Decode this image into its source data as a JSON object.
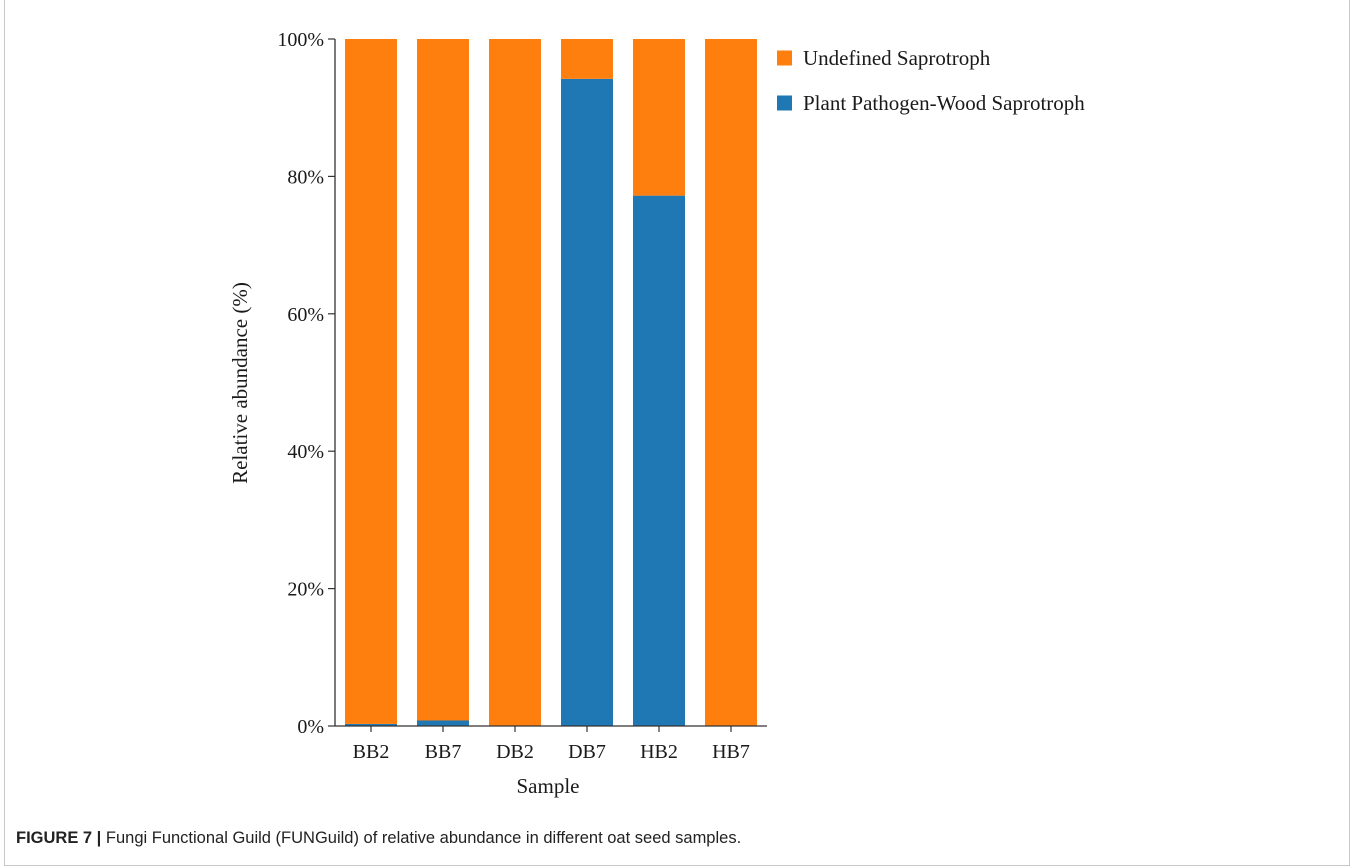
{
  "chart_data": {
    "type": "bar",
    "stacked": true,
    "categories": [
      "BB2",
      "BB7",
      "DB2",
      "DB7",
      "HB2",
      "HB7"
    ],
    "series": [
      {
        "name": "Plant Pathogen-Wood Saprotroph",
        "color": "#1f77b4",
        "values": [
          0.3,
          0.8,
          0,
          94.2,
          77.2,
          0
        ]
      },
      {
        "name": "Undefined Saprotroph",
        "color": "#ff7f0e",
        "values": [
          99.7,
          99.2,
          100,
          5.8,
          22.8,
          100
        ]
      }
    ],
    "legend_order": [
      "Undefined Saprotroph",
      "Plant Pathogen-Wood Saprotroph"
    ],
    "legend_position": "top-right",
    "xlabel": "Sample",
    "ylabel": "Relative abundance (%)",
    "ylim": [
      0,
      100
    ],
    "yticks": [
      0,
      20,
      40,
      60,
      80,
      100
    ],
    "ytick_labels": [
      "0%",
      "20%",
      "40%",
      "60%",
      "80%",
      "100%"
    ],
    "grid": false
  },
  "caption": {
    "label": "FIGURE 7 |",
    "text": " Fungi Functional Guild (FUNGuild) of relative abundance in different oat seed samples."
  }
}
